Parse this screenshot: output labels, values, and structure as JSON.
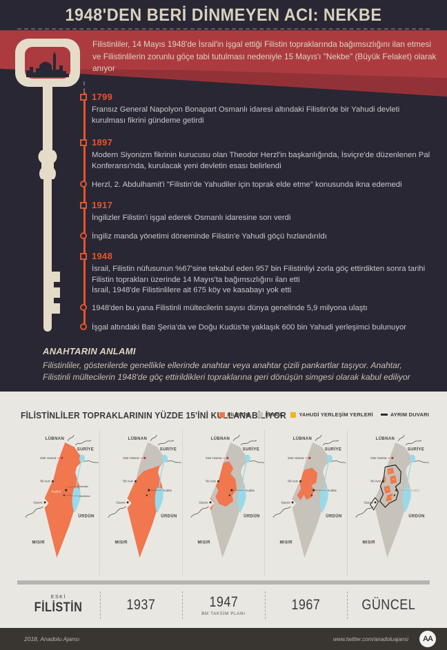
{
  "colors": {
    "navy": "#292733",
    "red": "#ac3b3f",
    "red_dark": "#8d3136",
    "cream": "#e4dcc8",
    "orange": "#e4562c",
    "text_light": "#c9c9cd",
    "maps_bg": "#e9e7e2",
    "israel_gray": "#c7c2ba",
    "palestine_orange": "#f0774e",
    "water_blue": "#9ad9e9",
    "settlement_yellow": "#f0b41f",
    "label_dark": "#44413b",
    "footer_bg": "#393530"
  },
  "header": {
    "title": "1948'DEN BERİ DİNMEYEN ACI: NEKBE",
    "intro": "Filistinliler, 14 Mayıs 1948'de İsrail'in işgal ettiği Filistin topraklarında bağımsızlığını ilan etmesi ve Filistinlilerin zorunlu göçe tabi tutulması nedeniyle 15 Mayıs'ı \"Nekbe\" (Büyük Felaket) olarak anıyor"
  },
  "timeline": {
    "events": [
      {
        "marker": "square",
        "year": "1799",
        "lines": [
          "Fransız General Napolyon Bonapart Osmanlı idaresi altındaki Filistin'de bir Yahudi devleti kurulması fikrini gündeme getirdi"
        ]
      },
      {
        "marker": "square",
        "year": "1897",
        "lines": [
          "Modern Siyonizm fikrinin kurucusu olan Theodor Herzl'in başkanlığında, İsviçre'de düzenlenen Pal Konferansı'nda, kurulacak yeni devletin esası belirlendi"
        ]
      },
      {
        "marker": "circle",
        "year": "",
        "lines": [
          "Herzl, 2. Abdulhamit'i \"Filistin'de Yahudiler için toprak elde etme\" konusunda ikna edemedi"
        ]
      },
      {
        "marker": "square",
        "year": "1917",
        "lines": [
          "İngilizler Filistin'i işgal ederek Osmanlı idaresine son verdi"
        ]
      },
      {
        "marker": "circle",
        "year": "",
        "lines": [
          "İngiliz manda yönetimi döneminde Filistin'e Yahudi göçü hızlandırıldı"
        ]
      },
      {
        "marker": "square",
        "year": "1948",
        "lines": [
          "İsrail, Filistin nüfusunun %67'sine tekabul eden 957 bin Filistinliyi zorla göç ettirdikten sonra tarihi Filistin toprakları üzerinde 14 Mayıs'ta bağımsızlığını ilan etti",
          "İsrail, 1948'de Filistinlilere ait 675 köy ve kasabayı yok etti"
        ]
      },
      {
        "marker": "circle",
        "year": "",
        "lines": [
          "1948'den bu yana Filistinli mültecilerin sayısı dünya genelinde 5,9 milyona ulaştı"
        ]
      },
      {
        "marker": "circle",
        "year": "",
        "lines": [
          "İşgal altındaki Batı Şeria'da ve Doğu Kudüs'te yaklaşık 600 bin Yahudi yerleşimci bulunuyor"
        ]
      }
    ]
  },
  "key_meaning": {
    "heading": "ANAHTARIN ANLAMI",
    "body": "Filistinliler, gösterilerde genellikle ellerinde anahtar veya anahtar çizili pankartlar taşıyor. Anahtar, Filistinli mültecilerin 1948'de göç ettirildikleri topraklarına geri dönüşün simgesi olarak kabul ediliyor"
  },
  "maps_section": {
    "title": "FİLİSTİNLİLER TOPRAKLARININ YÜZDE 15'İNİ KULLANABİLİYOR",
    "legend": [
      {
        "label": "FİLİSTİN",
        "swatch": "palestine"
      },
      {
        "label": "İSRAİL",
        "swatch": "israel"
      },
      {
        "label": "YAHUDİ YERLEŞİM YERLERİ",
        "swatch": "settlement"
      },
      {
        "label": "AYRIM DUVARI",
        "swatch": "wall"
      }
    ],
    "map_labels": {
      "lubnan": "LÜBNAN",
      "suriye": "SURİYE",
      "urdun": "ÜRDÜN",
      "misir": "MISIR",
      "deir_hanna": "Deir Hanna",
      "tel_aviv": "Tel Aviv",
      "kudus": "Kudüs",
      "gazze": "Gazze",
      "ramallah": "Ramallah",
      "beytullahim": "Beytüllahim"
    },
    "panels": [
      {
        "key": "eski",
        "caption_top": "ESKİ",
        "caption": "FİLİSTİN",
        "caption_sub": "",
        "caption_style": "bold"
      },
      {
        "key": "y1937",
        "caption_top": "",
        "caption": "1937",
        "caption_sub": "",
        "caption_style": ""
      },
      {
        "key": "y1947",
        "caption_top": "",
        "caption": "1947",
        "caption_sub": "BM TAKSİM PLANI",
        "caption_style": ""
      },
      {
        "key": "y1967",
        "caption_top": "",
        "caption": "1967",
        "caption_sub": "",
        "caption_style": ""
      },
      {
        "key": "guncel",
        "caption_top": "",
        "caption": "GÜNCEL",
        "caption_sub": "",
        "caption_style": ""
      }
    ]
  },
  "footer": {
    "credit": "2018, Anadolu Ajansı",
    "url": "www.twitter.com/anadoluajansi",
    "logo_text": "AA"
  }
}
